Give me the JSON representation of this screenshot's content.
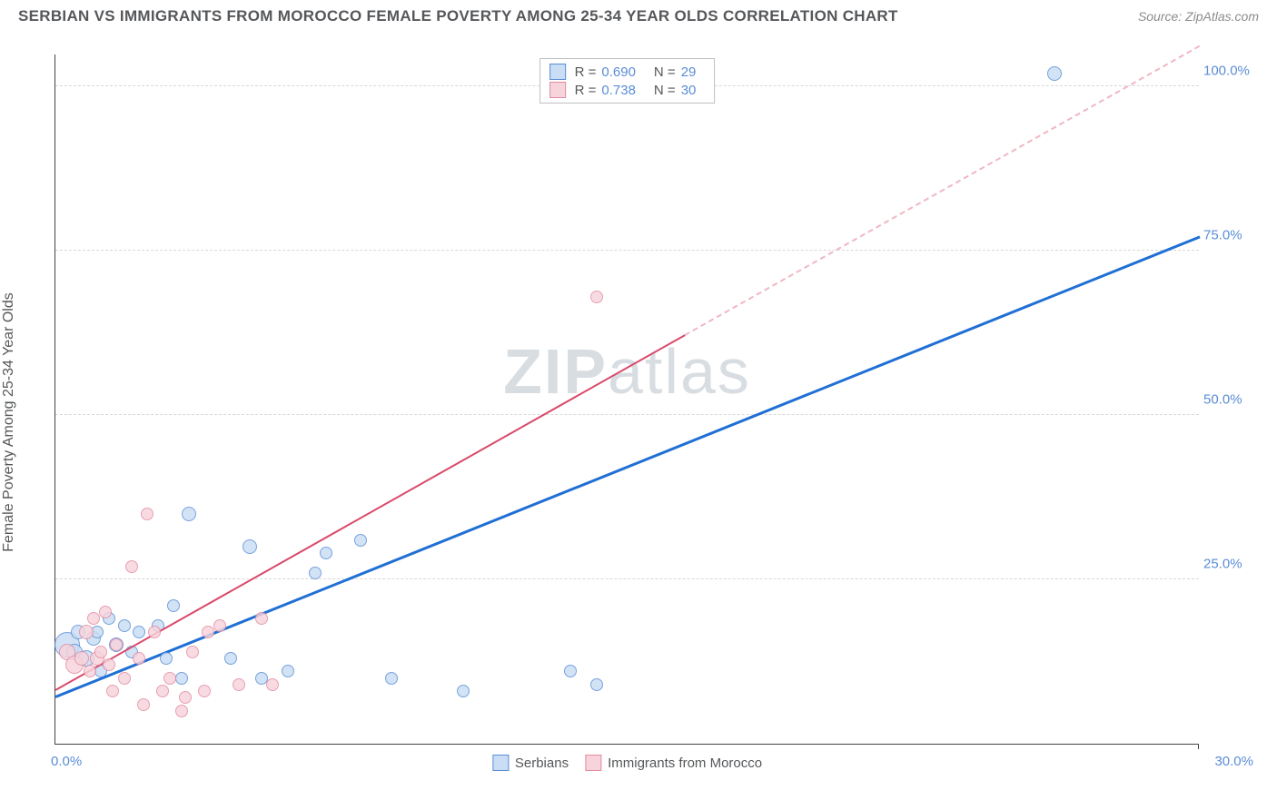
{
  "title": "SERBIAN VS IMMIGRANTS FROM MOROCCO FEMALE POVERTY AMONG 25-34 YEAR OLDS CORRELATION CHART",
  "source": "Source: ZipAtlas.com",
  "ylabel": "Female Poverty Among 25-34 Year Olds",
  "watermark_a": "ZIP",
  "watermark_b": "atlas",
  "chart": {
    "type": "scatter",
    "xlim": [
      0,
      30
    ],
    "ylim": [
      0,
      105
    ],
    "x_ticks": [
      {
        "v": 0,
        "label": "0.0%"
      },
      {
        "v": 30,
        "label": "30.0%"
      }
    ],
    "y_ticks": [
      {
        "v": 25,
        "label": "25.0%"
      },
      {
        "v": 50,
        "label": "50.0%"
      },
      {
        "v": 75,
        "label": "75.0%"
      },
      {
        "v": 100,
        "label": "100.0%"
      }
    ],
    "grid_color": "#d8d8d8",
    "background_color": "#ffffff",
    "series": [
      {
        "name": "Serbians",
        "fill": "#c9ddf4",
        "stroke": "#5b8dd6",
        "r_value": "0.690",
        "n_value": "29",
        "trend": {
          "x1": 0,
          "y1": 7,
          "x2": 30,
          "y2": 77,
          "color": "#1f6fd4",
          "width": 2.5,
          "style": "solid",
          "dash_from_x": 30
        },
        "points": [
          {
            "x": 0.3,
            "y": 15,
            "r": 14
          },
          {
            "x": 0.5,
            "y": 14,
            "r": 9
          },
          {
            "x": 0.6,
            "y": 17,
            "r": 8
          },
          {
            "x": 0.8,
            "y": 13,
            "r": 9
          },
          {
            "x": 1.0,
            "y": 16,
            "r": 8
          },
          {
            "x": 1.2,
            "y": 11,
            "r": 7
          },
          {
            "x": 1.4,
            "y": 19,
            "r": 7
          },
          {
            "x": 1.1,
            "y": 17,
            "r": 7
          },
          {
            "x": 1.6,
            "y": 15,
            "r": 8
          },
          {
            "x": 1.8,
            "y": 18,
            "r": 7
          },
          {
            "x": 2.0,
            "y": 14,
            "r": 7
          },
          {
            "x": 2.2,
            "y": 17,
            "r": 7
          },
          {
            "x": 2.9,
            "y": 13,
            "r": 7
          },
          {
            "x": 2.7,
            "y": 18,
            "r": 7
          },
          {
            "x": 3.3,
            "y": 10,
            "r": 7
          },
          {
            "x": 3.1,
            "y": 21,
            "r": 7
          },
          {
            "x": 3.5,
            "y": 35,
            "r": 8
          },
          {
            "x": 4.6,
            "y": 13,
            "r": 7
          },
          {
            "x": 5.1,
            "y": 30,
            "r": 8
          },
          {
            "x": 5.4,
            "y": 10,
            "r": 7
          },
          {
            "x": 6.1,
            "y": 11,
            "r": 7
          },
          {
            "x": 6.8,
            "y": 26,
            "r": 7
          },
          {
            "x": 7.1,
            "y": 29,
            "r": 7
          },
          {
            "x": 8.0,
            "y": 31,
            "r": 7
          },
          {
            "x": 8.8,
            "y": 10,
            "r": 7
          },
          {
            "x": 10.7,
            "y": 8,
            "r": 7
          },
          {
            "x": 13.5,
            "y": 11,
            "r": 7
          },
          {
            "x": 14.2,
            "y": 9,
            "r": 7
          },
          {
            "x": 26.2,
            "y": 102,
            "r": 8
          }
        ]
      },
      {
        "name": "Immigrants from Morocco",
        "fill": "#f7d4dc",
        "stroke": "#e28ba1",
        "r_value": "0.738",
        "n_value": "30",
        "trend": {
          "x1": 0,
          "y1": 8,
          "x2": 16.5,
          "y2": 62,
          "color": "#d94a6b",
          "width": 2,
          "style": "solid",
          "dash_to_x": 30,
          "dash_to_y": 106,
          "dash_color": "#f0b7c3"
        },
        "points": [
          {
            "x": 0.3,
            "y": 14,
            "r": 9
          },
          {
            "x": 0.5,
            "y": 12,
            "r": 10
          },
          {
            "x": 0.7,
            "y": 13,
            "r": 8
          },
          {
            "x": 0.8,
            "y": 17,
            "r": 8
          },
          {
            "x": 0.9,
            "y": 11,
            "r": 7
          },
          {
            "x": 1.0,
            "y": 19,
            "r": 7
          },
          {
            "x": 1.1,
            "y": 13,
            "r": 8
          },
          {
            "x": 1.2,
            "y": 14,
            "r": 7
          },
          {
            "x": 1.3,
            "y": 20,
            "r": 7
          },
          {
            "x": 1.4,
            "y": 12,
            "r": 7
          },
          {
            "x": 1.5,
            "y": 8,
            "r": 7
          },
          {
            "x": 1.6,
            "y": 15,
            "r": 7
          },
          {
            "x": 1.8,
            "y": 10,
            "r": 7
          },
          {
            "x": 2.0,
            "y": 27,
            "r": 7
          },
          {
            "x": 2.2,
            "y": 13,
            "r": 7
          },
          {
            "x": 2.4,
            "y": 35,
            "r": 7
          },
          {
            "x": 2.3,
            "y": 6,
            "r": 7
          },
          {
            "x": 2.6,
            "y": 17,
            "r": 7
          },
          {
            "x": 2.8,
            "y": 8,
            "r": 7
          },
          {
            "x": 3.0,
            "y": 10,
            "r": 7
          },
          {
            "x": 3.3,
            "y": 5,
            "r": 7
          },
          {
            "x": 3.4,
            "y": 7,
            "r": 7
          },
          {
            "x": 3.6,
            "y": 14,
            "r": 7
          },
          {
            "x": 3.9,
            "y": 8,
            "r": 7
          },
          {
            "x": 4.0,
            "y": 17,
            "r": 7
          },
          {
            "x": 4.3,
            "y": 18,
            "r": 7
          },
          {
            "x": 4.8,
            "y": 9,
            "r": 7
          },
          {
            "x": 5.4,
            "y": 19,
            "r": 7
          },
          {
            "x": 5.7,
            "y": 9,
            "r": 7
          },
          {
            "x": 14.2,
            "y": 68,
            "r": 7
          }
        ]
      }
    ]
  }
}
